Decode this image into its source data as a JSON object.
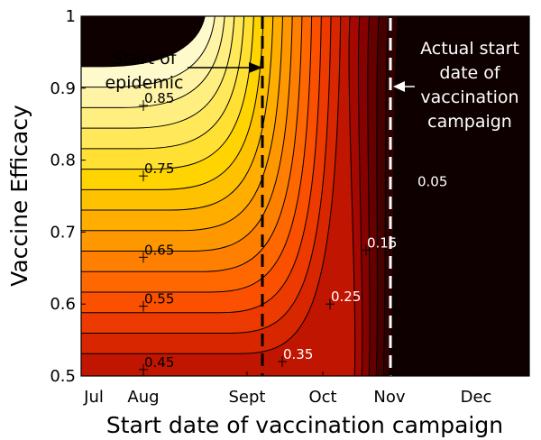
{
  "chart_data": {
    "type": "contour",
    "title": "",
    "xlabel": "Start date of vaccination campaign",
    "ylabel": "Vaccine Efficacy",
    "x_ticks": [
      "Jul",
      "Aug",
      "Sept",
      "Oct",
      "Nov",
      "Dec"
    ],
    "y_ticks": [
      "0.5",
      "0.6",
      "0.7",
      "0.8",
      "0.9",
      "1"
    ],
    "ylim": [
      0.5,
      1.0
    ],
    "grid": false,
    "contour_labels": [
      {
        "text": "0.85",
        "x": "Aug",
        "y": 0.876
      },
      {
        "text": "0.75",
        "x": "Aug",
        "y": 0.778
      },
      {
        "text": "0.65",
        "x": "Aug",
        "y": 0.665
      },
      {
        "text": "0.55",
        "x": "Aug",
        "y": 0.597
      },
      {
        "text": "0.45",
        "x": "Aug",
        "y": 0.509
      },
      {
        "text": "0.35",
        "x": "Sep 20",
        "y": 0.52
      },
      {
        "text": "0.25",
        "x": "Oct 5",
        "y": 0.6
      },
      {
        "text": "0.15",
        "x": "Oct 25",
        "y": 0.675
      },
      {
        "text": "0.05",
        "x": "Nov 22",
        "y": 0.76
      }
    ],
    "annotations": {
      "start_epidemic": {
        "text": [
          "Start of",
          "epidemic"
        ],
        "x": "Sept 8"
      },
      "actual_start": {
        "text": [
          "Actual start",
          "date of",
          "vaccination",
          "campaign"
        ],
        "x": "Oct 31"
      }
    }
  }
}
